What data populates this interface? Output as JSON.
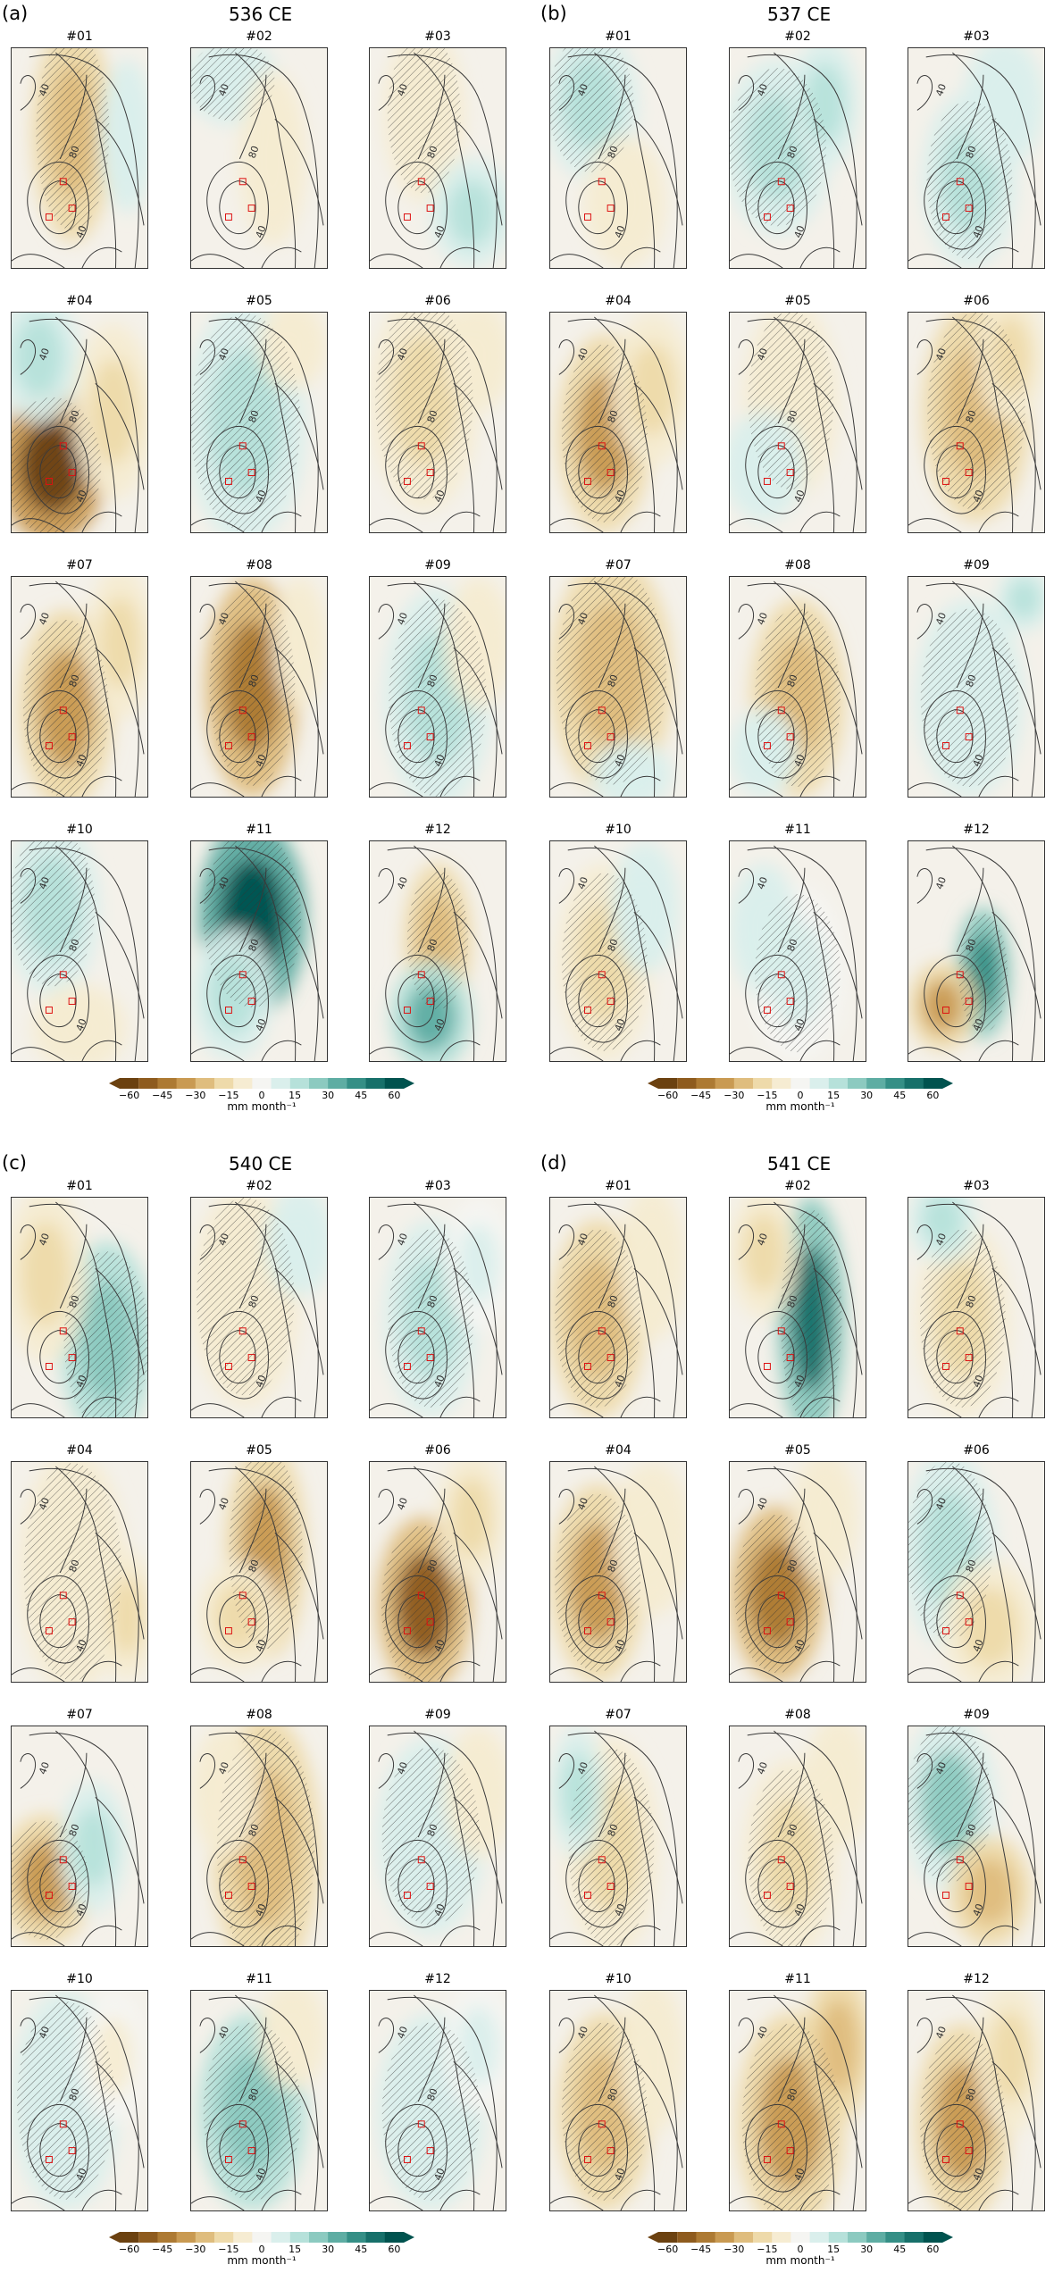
{
  "panels": [
    {
      "letter": "(a)",
      "title": "536 CE",
      "months": [
        {
          "label": "#01",
          "lobes": [
            [
              0.45,
              0.38,
              0.3,
              0.5,
              -22
            ],
            [
              0.85,
              0.4,
              0.2,
              0.35,
              10
            ]
          ]
        },
        {
          "label": "#02",
          "lobes": [
            [
              0.3,
              0.15,
              0.35,
              0.2,
              8
            ],
            [
              0.6,
              0.5,
              0.25,
              0.4,
              -8
            ]
          ]
        },
        {
          "label": "#03",
          "lobes": [
            [
              0.4,
              0.3,
              0.3,
              0.4,
              -12
            ],
            [
              0.75,
              0.75,
              0.3,
              0.25,
              12
            ]
          ]
        },
        {
          "label": "#04",
          "lobes": [
            [
              0.3,
              0.7,
              0.4,
              0.35,
              -55
            ],
            [
              0.2,
              0.2,
              0.3,
              0.3,
              18
            ],
            [
              0.75,
              0.45,
              0.3,
              0.4,
              -20
            ]
          ]
        },
        {
          "label": "#05",
          "lobes": [
            [
              0.4,
              0.5,
              0.45,
              0.55,
              14
            ],
            [
              0.75,
              0.15,
              0.25,
              0.2,
              -8
            ]
          ]
        },
        {
          "label": "#06",
          "lobes": [
            [
              0.4,
              0.4,
              0.4,
              0.5,
              -14
            ],
            [
              0.8,
              0.2,
              0.25,
              0.25,
              -10
            ]
          ]
        },
        {
          "label": "#07",
          "lobes": [
            [
              0.4,
              0.6,
              0.35,
              0.45,
              -30
            ],
            [
              0.8,
              0.3,
              0.25,
              0.35,
              -14
            ]
          ]
        },
        {
          "label": "#08",
          "lobes": [
            [
              0.45,
              0.5,
              0.35,
              0.5,
              -42
            ],
            [
              0.8,
              0.3,
              0.2,
              0.3,
              -10
            ]
          ]
        },
        {
          "label": "#09",
          "lobes": [
            [
              0.5,
              0.55,
              0.4,
              0.5,
              16
            ],
            [
              0.8,
              0.3,
              0.25,
              0.3,
              -12
            ]
          ]
        },
        {
          "label": "#10",
          "lobes": [
            [
              0.3,
              0.3,
              0.35,
              0.4,
              12
            ],
            [
              0.5,
              0.85,
              0.35,
              0.2,
              -8
            ]
          ]
        },
        {
          "label": "#11",
          "lobes": [
            [
              0.45,
              0.35,
              0.4,
              0.45,
              55
            ],
            [
              0.3,
              0.7,
              0.3,
              0.3,
              14
            ]
          ]
        },
        {
          "label": "#12",
          "lobes": [
            [
              0.5,
              0.45,
              0.25,
              0.35,
              -26
            ],
            [
              0.45,
              0.8,
              0.3,
              0.25,
              30
            ]
          ]
        }
      ]
    },
    {
      "letter": "(b)",
      "title": "537 CE",
      "months": [
        {
          "label": "#01",
          "lobes": [
            [
              0.3,
              0.25,
              0.35,
              0.35,
              12
            ],
            [
              0.55,
              0.7,
              0.3,
              0.3,
              -8
            ]
          ]
        },
        {
          "label": "#02",
          "lobes": [
            [
              0.35,
              0.45,
              0.4,
              0.4,
              16
            ],
            [
              0.7,
              0.25,
              0.25,
              0.3,
              14
            ]
          ]
        },
        {
          "label": "#03",
          "lobes": [
            [
              0.45,
              0.6,
              0.35,
              0.4,
              18
            ],
            [
              0.7,
              0.25,
              0.3,
              0.3,
              10
            ]
          ]
        },
        {
          "label": "#04",
          "lobes": [
            [
              0.4,
              0.55,
              0.35,
              0.45,
              -32
            ],
            [
              0.75,
              0.35,
              0.3,
              0.35,
              -16
            ]
          ]
        },
        {
          "label": "#05",
          "lobes": [
            [
              0.45,
              0.4,
              0.35,
              0.45,
              -12
            ],
            [
              0.25,
              0.7,
              0.3,
              0.25,
              8
            ]
          ]
        },
        {
          "label": "#06",
          "lobes": [
            [
              0.5,
              0.45,
              0.4,
              0.5,
              -28
            ],
            [
              0.75,
              0.2,
              0.25,
              0.3,
              -18
            ]
          ]
        },
        {
          "label": "#07",
          "lobes": [
            [
              0.45,
              0.45,
              0.45,
              0.55,
              -24
            ],
            [
              0.6,
              0.9,
              0.3,
              0.15,
              10
            ]
          ]
        },
        {
          "label": "#08",
          "lobes": [
            [
              0.5,
              0.55,
              0.35,
              0.45,
              -26
            ],
            [
              0.25,
              0.8,
              0.25,
              0.2,
              8
            ]
          ]
        },
        {
          "label": "#09",
          "lobes": [
            [
              0.45,
              0.55,
              0.4,
              0.45,
              8
            ],
            [
              0.85,
              0.1,
              0.2,
              0.15,
              12
            ]
          ]
        },
        {
          "label": "#10",
          "lobes": [
            [
              0.4,
              0.55,
              0.35,
              0.45,
              -16
            ],
            [
              0.7,
              0.3,
              0.25,
              0.3,
              8
            ]
          ]
        },
        {
          "label": "#11",
          "lobes": [
            [
              0.5,
              0.6,
              0.35,
              0.4,
              6
            ],
            [
              0.25,
              0.4,
              0.25,
              0.3,
              8
            ]
          ]
        },
        {
          "label": "#12",
          "lobes": [
            [
              0.55,
              0.6,
              0.2,
              0.3,
              40
            ],
            [
              0.25,
              0.75,
              0.25,
              0.2,
              -30
            ]
          ]
        }
      ]
    },
    {
      "letter": "(c)",
      "title": "540 CE",
      "months": [
        {
          "label": "#01",
          "lobes": [
            [
              0.7,
              0.65,
              0.35,
              0.45,
              24
            ],
            [
              0.25,
              0.35,
              0.3,
              0.4,
              -16
            ]
          ]
        },
        {
          "label": "#02",
          "lobes": [
            [
              0.4,
              0.45,
              0.4,
              0.5,
              -10
            ],
            [
              0.8,
              0.2,
              0.25,
              0.25,
              8
            ]
          ]
        },
        {
          "label": "#03",
          "lobes": [
            [
              0.45,
              0.55,
              0.35,
              0.45,
              12
            ],
            [
              0.8,
              0.3,
              0.25,
              0.3,
              6
            ]
          ]
        },
        {
          "label": "#04",
          "lobes": [
            [
              0.45,
              0.5,
              0.4,
              0.55,
              -12
            ],
            [
              0.85,
              0.7,
              0.2,
              0.3,
              -14
            ]
          ]
        },
        {
          "label": "#05",
          "lobes": [
            [
              0.55,
              0.4,
              0.3,
              0.5,
              -32
            ],
            [
              0.35,
              0.7,
              0.3,
              0.25,
              -18
            ]
          ]
        },
        {
          "label": "#06",
          "lobes": [
            [
              0.4,
              0.65,
              0.35,
              0.4,
              -46
            ],
            [
              0.75,
              0.25,
              0.25,
              0.3,
              -14
            ]
          ]
        },
        {
          "label": "#07",
          "lobes": [
            [
              0.25,
              0.7,
              0.35,
              0.3,
              -36
            ],
            [
              0.6,
              0.55,
              0.25,
              0.3,
              16
            ]
          ]
        },
        {
          "label": "#08",
          "lobes": [
            [
              0.55,
              0.55,
              0.4,
              0.6,
              -28
            ],
            [
              0.25,
              0.3,
              0.25,
              0.3,
              -8
            ]
          ]
        },
        {
          "label": "#09",
          "lobes": [
            [
              0.45,
              0.5,
              0.4,
              0.45,
              10
            ],
            [
              0.8,
              0.3,
              0.25,
              0.3,
              -8
            ]
          ]
        },
        {
          "label": "#10",
          "lobes": [
            [
              0.4,
              0.5,
              0.4,
              0.5,
              8
            ],
            [
              0.75,
              0.3,
              0.25,
              0.3,
              -6
            ]
          ]
        },
        {
          "label": "#11",
          "lobes": [
            [
              0.45,
              0.55,
              0.4,
              0.45,
              22
            ],
            [
              0.75,
              0.2,
              0.25,
              0.25,
              -8
            ]
          ]
        },
        {
          "label": "#12",
          "lobes": [
            [
              0.45,
              0.55,
              0.4,
              0.45,
              10
            ],
            [
              0.8,
              0.25,
              0.25,
              0.3,
              6
            ]
          ]
        }
      ]
    },
    {
      "letter": "(d)",
      "title": "541 CE",
      "months": [
        {
          "label": "#01",
          "lobes": [
            [
              0.35,
              0.55,
              0.35,
              0.45,
              -24
            ],
            [
              0.75,
              0.3,
              0.25,
              0.35,
              -10
            ]
          ]
        },
        {
          "label": "#02",
          "lobes": [
            [
              0.6,
              0.55,
              0.25,
              0.55,
              48
            ],
            [
              0.25,
              0.25,
              0.25,
              0.3,
              -14
            ]
          ]
        },
        {
          "label": "#03",
          "lobes": [
            [
              0.4,
              0.55,
              0.35,
              0.45,
              -18
            ],
            [
              0.25,
              0.1,
              0.25,
              0.2,
              14
            ]
          ]
        },
        {
          "label": "#04",
          "lobes": [
            [
              0.35,
              0.55,
              0.35,
              0.45,
              -32
            ],
            [
              0.75,
              0.35,
              0.3,
              0.35,
              -12
            ]
          ]
        },
        {
          "label": "#05",
          "lobes": [
            [
              0.35,
              0.6,
              0.35,
              0.4,
              -42
            ],
            [
              0.7,
              0.25,
              0.25,
              0.3,
              -8
            ]
          ]
        },
        {
          "label": "#06",
          "lobes": [
            [
              0.3,
              0.4,
              0.35,
              0.45,
              18
            ],
            [
              0.6,
              0.75,
              0.35,
              0.3,
              -20
            ]
          ]
        },
        {
          "label": "#07",
          "lobes": [
            [
              0.45,
              0.55,
              0.35,
              0.5,
              -20
            ],
            [
              0.2,
              0.3,
              0.2,
              0.3,
              12
            ]
          ]
        },
        {
          "label": "#08",
          "lobes": [
            [
              0.45,
              0.6,
              0.35,
              0.45,
              -18
            ],
            [
              0.8,
              0.25,
              0.25,
              0.3,
              -8
            ]
          ]
        },
        {
          "label": "#09",
          "lobes": [
            [
              0.3,
              0.35,
              0.35,
              0.4,
              20
            ],
            [
              0.6,
              0.75,
              0.3,
              0.25,
              -22
            ]
          ]
        },
        {
          "label": "#10",
          "lobes": [
            [
              0.4,
              0.55,
              0.35,
              0.45,
              -28
            ],
            [
              0.75,
              0.3,
              0.25,
              0.35,
              -10
            ]
          ]
        },
        {
          "label": "#11",
          "lobes": [
            [
              0.45,
              0.6,
              0.4,
              0.5,
              -30
            ],
            [
              0.8,
              0.25,
              0.25,
              0.35,
              -22
            ]
          ]
        },
        {
          "label": "#12",
          "lobes": [
            [
              0.4,
              0.6,
              0.35,
              0.45,
              -36
            ],
            [
              0.75,
              0.3,
              0.25,
              0.35,
              -20
            ]
          ]
        }
      ]
    }
  ],
  "colorbar": {
    "ticks": [
      "−60",
      "−45",
      "−30",
      "−15",
      "0",
      "15",
      "30",
      "45",
      "60"
    ],
    "unit": "mm month⁻¹",
    "colors": [
      "#6b4110",
      "#8e5b1e",
      "#ad7a33",
      "#c99a52",
      "#dfbd7e",
      "#eedaaa",
      "#f6ecd2",
      "#f5f5f2",
      "#daefec",
      "#b6e1da",
      "#8ccac0",
      "#5eada3",
      "#358f86",
      "#17706a",
      "#00534f"
    ]
  },
  "contour_labels": [
    "40",
    "80",
    "40"
  ]
}
